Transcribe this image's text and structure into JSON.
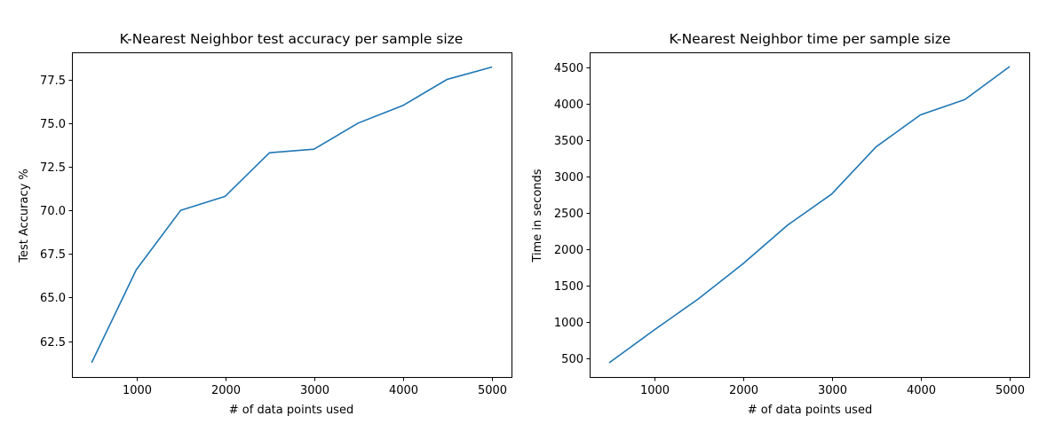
{
  "figure": {
    "background": "#ffffff"
  },
  "chart_data": [
    {
      "type": "line",
      "title": "K-Nearest Neighbor test accuracy per sample size",
      "xlabel": "# of data points used",
      "ylabel": "Test Accuracy %",
      "x": [
        500,
        1000,
        1500,
        2000,
        2500,
        3000,
        3500,
        4000,
        4500,
        5000
      ],
      "series": [
        {
          "values": [
            61.3,
            66.6,
            70.0,
            70.8,
            73.3,
            73.5,
            75.0,
            76.0,
            77.5,
            78.2
          ],
          "color": "#1f77b4"
        }
      ],
      "xlim": [
        275,
        5225
      ],
      "ylim": [
        60.45,
        79.05
      ],
      "xticks": [
        1000,
        2000,
        3000,
        4000,
        5000
      ],
      "xtick_labels": [
        "1000",
        "2000",
        "3000",
        "4000",
        "5000"
      ],
      "yticks": [
        62.5,
        65.0,
        67.5,
        70.0,
        72.5,
        75.0,
        77.5
      ],
      "ytick_labels": [
        "62.5",
        "65.0",
        "67.5",
        "70.0",
        "72.5",
        "75.0",
        "77.5"
      ],
      "grid": false
    },
    {
      "type": "line",
      "title": "K-Nearest Neighbor time per sample size",
      "xlabel": "# of data points used",
      "ylabel": "Time in seconds",
      "x": [
        500,
        1000,
        1500,
        2000,
        2500,
        3000,
        3500,
        4000,
        4500,
        5000
      ],
      "series": [
        {
          "values": [
            445,
            890,
            1320,
            1800,
            2330,
            2760,
            3410,
            3850,
            4060,
            4510
          ],
          "color": "#1f77b4"
        }
      ],
      "xlim": [
        275,
        5225
      ],
      "ylim": [
        245,
        4710
      ],
      "xticks": [
        1000,
        2000,
        3000,
        4000,
        5000
      ],
      "xtick_labels": [
        "1000",
        "2000",
        "3000",
        "4000",
        "5000"
      ],
      "yticks": [
        500,
        1000,
        1500,
        2000,
        2500,
        3000,
        3500,
        4000,
        4500
      ],
      "ytick_labels": [
        "500",
        "1000",
        "1500",
        "2000",
        "2500",
        "3000",
        "3500",
        "4000",
        "4500"
      ],
      "grid": false
    }
  ]
}
